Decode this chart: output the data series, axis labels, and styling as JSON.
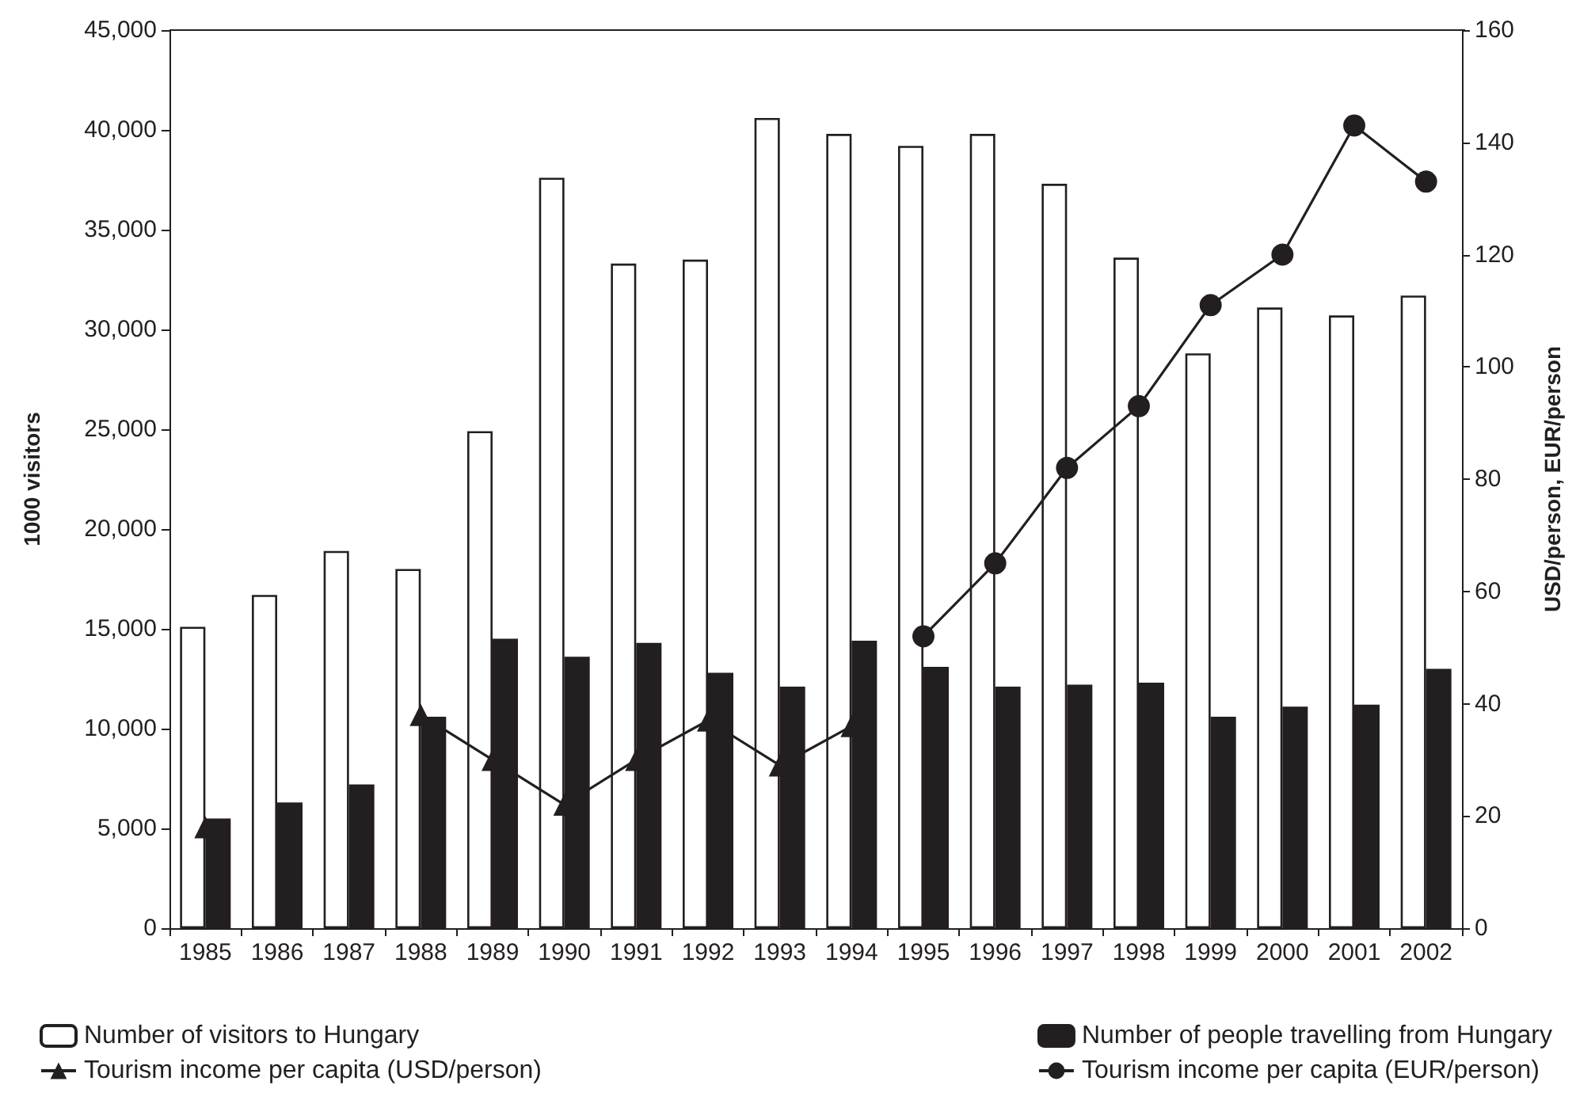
{
  "chart_data": {
    "type": "bar",
    "ylabel": "1000 visitors",
    "y2label": "USD/person, EUR/person",
    "categories": [
      "1985",
      "1986",
      "1987",
      "1988",
      "1989",
      "1990",
      "1991",
      "1992",
      "1993",
      "1994",
      "1995",
      "1996",
      "1997",
      "1998",
      "1999",
      "2000",
      "2001",
      "2002"
    ],
    "series": [
      {
        "name": "Number of visitors to Hungary",
        "color": "#ffffff",
        "values": [
          15100,
          16700,
          18900,
          18000,
          24900,
          37600,
          33300,
          33500,
          40600,
          39800,
          39200,
          39800,
          37300,
          33600,
          28800,
          31100,
          30700,
          31700
        ]
      },
      {
        "name": "Number of people travelling from Hungary",
        "color": "#231f20",
        "values": [
          5500,
          6300,
          7200,
          10600,
          14500,
          13600,
          14300,
          12800,
          12100,
          14400,
          13100,
          12100,
          12200,
          12300,
          10600,
          11100,
          11200,
          13000
        ]
      },
      {
        "name": "Tourism income per capita (USD/person)",
        "type": "line",
        "axis": "y2",
        "marker": "triangle",
        "color": "#231f20",
        "values": [
          18,
          null,
          null,
          38,
          30,
          22,
          30,
          37,
          29,
          36,
          null,
          null,
          null,
          null,
          null,
          null,
          null,
          null
        ]
      },
      {
        "name": "Tourism income per capita (EUR/person)",
        "type": "line",
        "axis": "y2",
        "marker": "circle",
        "color": "#231f20",
        "values": [
          null,
          null,
          null,
          null,
          null,
          null,
          null,
          null,
          null,
          null,
          52,
          65,
          82,
          93,
          111,
          120,
          143,
          133
        ]
      }
    ],
    "ylim": [
      0,
      45000
    ],
    "yticks": [
      0,
      {
        "value": 5000,
        "label": "5,000"
      },
      {
        "value": 10000,
        "label": "10,000"
      },
      {
        "value": 15000,
        "label": "15,000"
      },
      {
        "value": 20000,
        "label": "20,000"
      },
      {
        "value": 25000,
        "label": "25,000"
      },
      {
        "value": 30000,
        "label": "30,000"
      },
      {
        "value": 35000,
        "label": "35,000"
      },
      {
        "value": 40000,
        "label": "40,000"
      },
      {
        "value": 45000,
        "label": "45,000"
      }
    ],
    "y2lim": [
      0,
      160
    ],
    "y2ticks": [
      0,
      20,
      40,
      60,
      80,
      100,
      120,
      140,
      160
    ],
    "grid": false,
    "legend": "bottom",
    "line_style": "solid"
  }
}
